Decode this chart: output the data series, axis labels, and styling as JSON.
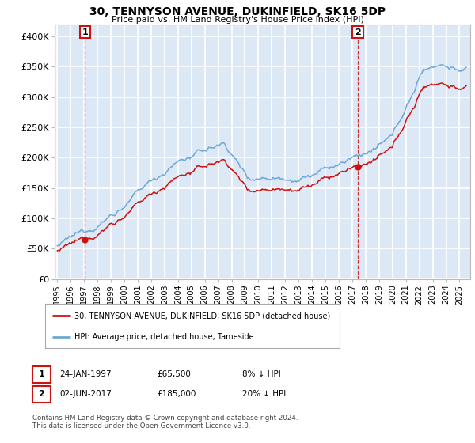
{
  "title": "30, TENNYSON AVENUE, DUKINFIELD, SK16 5DP",
  "subtitle": "Price paid vs. HM Land Registry's House Price Index (HPI)",
  "ylabel_ticks": [
    "£0",
    "£50K",
    "£100K",
    "£150K",
    "£200K",
    "£250K",
    "£300K",
    "£350K",
    "£400K"
  ],
  "ylabel_values": [
    0,
    50000,
    100000,
    150000,
    200000,
    250000,
    300000,
    350000,
    400000
  ],
  "ylim": [
    0,
    420000
  ],
  "xlim_start": 1994.8,
  "xlim_end": 2025.8,
  "transaction1_date": 1997.07,
  "transaction1_price": 65500,
  "transaction2_date": 2017.42,
  "transaction2_price": 185000,
  "transaction1_text": "24-JAN-1997",
  "transaction1_price_str": "£65,500",
  "transaction1_pct": "8% ↓ HPI",
  "transaction2_text": "02-JUN-2017",
  "transaction2_price_str": "£185,000",
  "transaction2_pct": "20% ↓ HPI",
  "legend_line1": "30, TENNYSON AVENUE, DUKINFIELD, SK16 5DP (detached house)",
  "legend_line2": "HPI: Average price, detached house, Tameside",
  "footer": "Contains HM Land Registry data © Crown copyright and database right 2024.\nThis data is licensed under the Open Government Licence v3.0.",
  "background_color": "#dce8f5",
  "grid_color": "#ffffff",
  "hpi_color": "#6fa8d4",
  "price_color": "#cc1111",
  "marker_color": "#cc1111",
  "ann_box_color": "#cc1111"
}
